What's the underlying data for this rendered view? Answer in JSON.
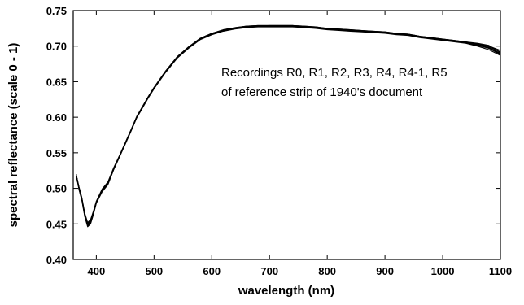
{
  "chart_data": {
    "type": "line",
    "title": "",
    "xlabel": "wavelength (nm)",
    "ylabel": "spectral reflectance (scale 0 - 1)",
    "xlim": [
      360,
      1100
    ],
    "ylim": [
      0.4,
      0.75
    ],
    "xticks": [
      400,
      500,
      600,
      700,
      800,
      900,
      1000,
      1100
    ],
    "yticks": [
      0.4,
      0.45,
      0.5,
      0.55,
      0.6,
      0.65,
      0.7,
      0.75
    ],
    "ytick_labels": [
      "0.40",
      "0.45",
      "0.50",
      "0.55",
      "0.60",
      "0.65",
      "0.70",
      "0.75"
    ],
    "grid": false,
    "legend": "none",
    "annotations": [
      "Recordings R0, R1, R2, R3, R4, R4-1, R5",
      "of reference strip of 1940's document"
    ],
    "series": [
      {
        "x": [
          365,
          370,
          375,
          380,
          385,
          390,
          395,
          400,
          410,
          420,
          430,
          440,
          450,
          460,
          470,
          480,
          490,
          500,
          520,
          540,
          560,
          580,
          600,
          620,
          640,
          660,
          680,
          700,
          720,
          740,
          760,
          780,
          800,
          820,
          840,
          860,
          880,
          900,
          920,
          940,
          960,
          980,
          1000,
          1020,
          1040,
          1060,
          1080,
          1100
        ],
        "values": [
          0.52,
          0.5,
          0.485,
          0.462,
          0.448,
          0.452,
          0.465,
          0.48,
          0.497,
          0.507,
          0.528,
          0.545,
          0.563,
          0.581,
          0.6,
          0.614,
          0.628,
          0.641,
          0.664,
          0.684,
          0.698,
          0.71,
          0.717,
          0.722,
          0.725,
          0.727,
          0.728,
          0.728,
          0.728,
          0.728,
          0.727,
          0.726,
          0.724,
          0.723,
          0.722,
          0.721,
          0.72,
          0.719,
          0.717,
          0.716,
          0.713,
          0.711,
          0.709,
          0.707,
          0.705,
          0.701,
          0.697,
          0.689
        ]
      },
      {
        "x": [
          365,
          370,
          375,
          380,
          385,
          390,
          395,
          400,
          410,
          420,
          430,
          440,
          450,
          460,
          470,
          480,
          490,
          500,
          520,
          540,
          560,
          580,
          600,
          620,
          640,
          660,
          680,
          700,
          720,
          740,
          760,
          780,
          800,
          820,
          840,
          860,
          880,
          900,
          920,
          940,
          960,
          980,
          1000,
          1020,
          1040,
          1060,
          1080,
          1100
        ],
        "values": [
          0.52,
          0.502,
          0.487,
          0.465,
          0.452,
          0.456,
          0.468,
          0.482,
          0.499,
          0.509,
          0.529,
          0.546,
          0.564,
          0.582,
          0.601,
          0.615,
          0.629,
          0.642,
          0.665,
          0.685,
          0.699,
          0.711,
          0.718,
          0.723,
          0.726,
          0.728,
          0.729,
          0.729,
          0.729,
          0.729,
          0.728,
          0.727,
          0.725,
          0.724,
          0.723,
          0.722,
          0.721,
          0.72,
          0.718,
          0.717,
          0.714,
          0.712,
          0.71,
          0.708,
          0.706,
          0.703,
          0.699,
          0.692
        ]
      },
      {
        "x": [
          365,
          370,
          375,
          380,
          385,
          390,
          395,
          400,
          410,
          420,
          430,
          440,
          450,
          460,
          470,
          480,
          490,
          500,
          520,
          540,
          560,
          580,
          600,
          620,
          640,
          660,
          680,
          700,
          720,
          740,
          760,
          780,
          800,
          820,
          840,
          860,
          880,
          900,
          920,
          940,
          960,
          980,
          1000,
          1020,
          1040,
          1060,
          1080,
          1100
        ],
        "values": [
          0.52,
          0.498,
          0.483,
          0.46,
          0.446,
          0.45,
          0.463,
          0.479,
          0.495,
          0.505,
          0.526,
          0.544,
          0.562,
          0.58,
          0.599,
          0.613,
          0.627,
          0.64,
          0.663,
          0.683,
          0.697,
          0.709,
          0.716,
          0.721,
          0.724,
          0.726,
          0.727,
          0.727,
          0.727,
          0.727,
          0.726,
          0.725,
          0.723,
          0.722,
          0.721,
          0.72,
          0.719,
          0.718,
          0.716,
          0.715,
          0.712,
          0.71,
          0.708,
          0.706,
          0.704,
          0.7,
          0.695,
          0.687
        ]
      },
      {
        "x": [
          365,
          370,
          375,
          380,
          385,
          390,
          395,
          400,
          410,
          420,
          430,
          440,
          450,
          460,
          470,
          480,
          490,
          500,
          520,
          540,
          560,
          580,
          600,
          620,
          640,
          660,
          680,
          700,
          720,
          740,
          760,
          780,
          800,
          820,
          840,
          860,
          880,
          900,
          920,
          940,
          960,
          980,
          1000,
          1020,
          1040,
          1060,
          1080,
          1100
        ],
        "values": [
          0.52,
          0.501,
          0.486,
          0.463,
          0.45,
          0.454,
          0.466,
          0.481,
          0.498,
          0.508,
          0.528,
          0.545,
          0.563,
          0.581,
          0.6,
          0.614,
          0.628,
          0.641,
          0.664,
          0.684,
          0.698,
          0.71,
          0.717,
          0.722,
          0.725,
          0.727,
          0.728,
          0.729,
          0.729,
          0.729,
          0.727,
          0.726,
          0.724,
          0.723,
          0.722,
          0.721,
          0.72,
          0.719,
          0.717,
          0.716,
          0.713,
          0.711,
          0.709,
          0.707,
          0.705,
          0.702,
          0.698,
          0.69
        ]
      },
      {
        "x": [
          365,
          370,
          375,
          380,
          385,
          390,
          395,
          400,
          410,
          420,
          430,
          440,
          450,
          460,
          470,
          480,
          490,
          500,
          520,
          540,
          560,
          580,
          600,
          620,
          640,
          660,
          680,
          700,
          720,
          740,
          760,
          780,
          800,
          820,
          840,
          860,
          880,
          900,
          920,
          940,
          960,
          980,
          1000,
          1020,
          1040,
          1060,
          1080,
          1100
        ],
        "values": [
          0.52,
          0.499,
          0.484,
          0.461,
          0.447,
          0.451,
          0.464,
          0.48,
          0.496,
          0.506,
          0.527,
          0.545,
          0.563,
          0.581,
          0.6,
          0.614,
          0.628,
          0.641,
          0.664,
          0.684,
          0.698,
          0.71,
          0.717,
          0.722,
          0.725,
          0.727,
          0.728,
          0.728,
          0.728,
          0.728,
          0.727,
          0.726,
          0.724,
          0.723,
          0.722,
          0.721,
          0.72,
          0.719,
          0.717,
          0.716,
          0.713,
          0.711,
          0.709,
          0.707,
          0.705,
          0.703,
          0.7,
          0.694
        ]
      },
      {
        "x": [
          365,
          370,
          375,
          380,
          385,
          390,
          395,
          400,
          410,
          420,
          430,
          440,
          450,
          460,
          470,
          480,
          490,
          500,
          520,
          540,
          560,
          580,
          600,
          620,
          640,
          660,
          680,
          700,
          720,
          740,
          760,
          780,
          800,
          820,
          840,
          860,
          880,
          900,
          920,
          940,
          960,
          980,
          1000,
          1020,
          1040,
          1060,
          1080,
          1100
        ],
        "values": [
          0.52,
          0.501,
          0.486,
          0.464,
          0.451,
          0.455,
          0.467,
          0.481,
          0.498,
          0.508,
          0.528,
          0.546,
          0.564,
          0.582,
          0.601,
          0.615,
          0.629,
          0.642,
          0.665,
          0.685,
          0.699,
          0.711,
          0.718,
          0.723,
          0.726,
          0.728,
          0.729,
          0.729,
          0.729,
          0.729,
          0.728,
          0.727,
          0.725,
          0.724,
          0.723,
          0.722,
          0.721,
          0.72,
          0.718,
          0.717,
          0.714,
          0.712,
          0.71,
          0.708,
          0.706,
          0.704,
          0.701,
          0.691
        ]
      },
      {
        "x": [
          365,
          370,
          375,
          380,
          385,
          390,
          395,
          400,
          410,
          420,
          430,
          440,
          450,
          460,
          470,
          480,
          490,
          500,
          520,
          540,
          560,
          580,
          600,
          620,
          640,
          660,
          680,
          700,
          720,
          740,
          760,
          780,
          800,
          820,
          840,
          860,
          880,
          900,
          920,
          940,
          960,
          980,
          1000,
          1020,
          1040,
          1060,
          1080,
          1100
        ],
        "values": [
          0.52,
          0.5,
          0.485,
          0.462,
          0.449,
          0.453,
          0.465,
          0.48,
          0.497,
          0.507,
          0.527,
          0.545,
          0.563,
          0.581,
          0.6,
          0.614,
          0.628,
          0.641,
          0.664,
          0.684,
          0.698,
          0.71,
          0.717,
          0.722,
          0.725,
          0.727,
          0.728,
          0.728,
          0.728,
          0.728,
          0.727,
          0.726,
          0.724,
          0.723,
          0.722,
          0.721,
          0.72,
          0.719,
          0.717,
          0.716,
          0.713,
          0.711,
          0.709,
          0.707,
          0.705,
          0.702,
          0.697,
          0.688
        ]
      }
    ]
  }
}
